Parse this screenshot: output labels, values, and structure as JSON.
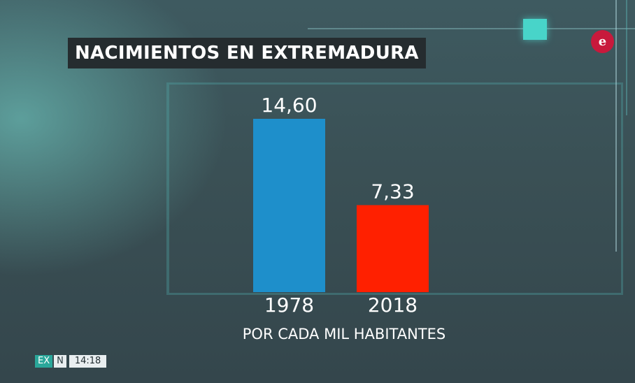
{
  "title": "NACIMIENTOS EN EXTREMADURA",
  "logo_text": "e",
  "ticker": {
    "channel": "EX",
    "channel_suffix": "N",
    "time": "14:18"
  },
  "colors": {
    "bar_1978": "#1e8fcb",
    "bar_2018": "#ff2000",
    "accent": "#48d4c9",
    "logo": "#c8193c"
  },
  "chart_data": {
    "type": "bar",
    "title": "NACIMIENTOS EN EXTREMADURA",
    "categories": [
      "1978",
      "2018"
    ],
    "values": [
      14.6,
      7.33
    ],
    "value_labels": [
      "14,60",
      "7,33"
    ],
    "xlabel": "POR CADA MIL HABITANTES",
    "ylabel": "",
    "ylim": [
      0,
      14.6
    ],
    "grid": false,
    "legend": "none"
  }
}
